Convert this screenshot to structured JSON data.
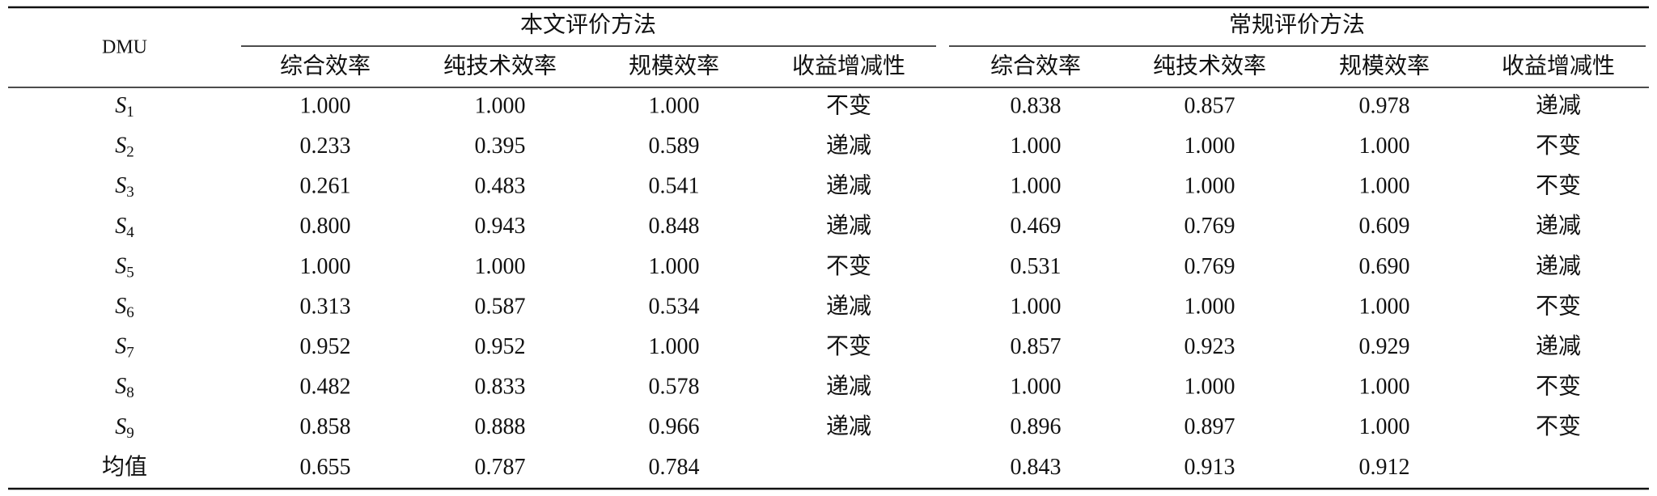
{
  "table": {
    "row_header": "DMU",
    "groups": [
      {
        "title": "本文评价方法",
        "columns": [
          "综合效率",
          "纯技术效率",
          "规模效率",
          "收益增减性"
        ]
      },
      {
        "title": "常规评价方法",
        "columns": [
          "综合效率",
          "纯技术效率",
          "规模效率",
          "收益增减性"
        ]
      }
    ],
    "rows": [
      {
        "label": "S",
        "sub": "1",
        "cells": [
          "1.000",
          "1.000",
          "1.000",
          "不变",
          "0.838",
          "0.857",
          "0.978",
          "递减"
        ]
      },
      {
        "label": "S",
        "sub": "2",
        "cells": [
          "0.233",
          "0.395",
          "0.589",
          "递减",
          "1.000",
          "1.000",
          "1.000",
          "不变"
        ]
      },
      {
        "label": "S",
        "sub": "3",
        "cells": [
          "0.261",
          "0.483",
          "0.541",
          "递减",
          "1.000",
          "1.000",
          "1.000",
          "不变"
        ]
      },
      {
        "label": "S",
        "sub": "4",
        "cells": [
          "0.800",
          "0.943",
          "0.848",
          "递减",
          "0.469",
          "0.769",
          "0.609",
          "递减"
        ]
      },
      {
        "label": "S",
        "sub": "5",
        "cells": [
          "1.000",
          "1.000",
          "1.000",
          "不变",
          "0.531",
          "0.769",
          "0.690",
          "递减"
        ]
      },
      {
        "label": "S",
        "sub": "6",
        "cells": [
          "0.313",
          "0.587",
          "0.534",
          "递减",
          "1.000",
          "1.000",
          "1.000",
          "不变"
        ]
      },
      {
        "label": "S",
        "sub": "7",
        "cells": [
          "0.952",
          "0.952",
          "1.000",
          "不变",
          "0.857",
          "0.923",
          "0.929",
          "递减"
        ]
      },
      {
        "label": "S",
        "sub": "8",
        "cells": [
          "0.482",
          "0.833",
          "0.578",
          "递减",
          "1.000",
          "1.000",
          "1.000",
          "不变"
        ]
      },
      {
        "label": "S",
        "sub": "9",
        "cells": [
          "0.858",
          "0.888",
          "0.966",
          "递减",
          "0.896",
          "0.897",
          "1.000",
          "不变"
        ]
      },
      {
        "label": "均值",
        "cells": [
          "0.655",
          "0.787",
          "0.784",
          null,
          "0.843",
          "0.913",
          "0.912",
          null
        ]
      }
    ]
  }
}
